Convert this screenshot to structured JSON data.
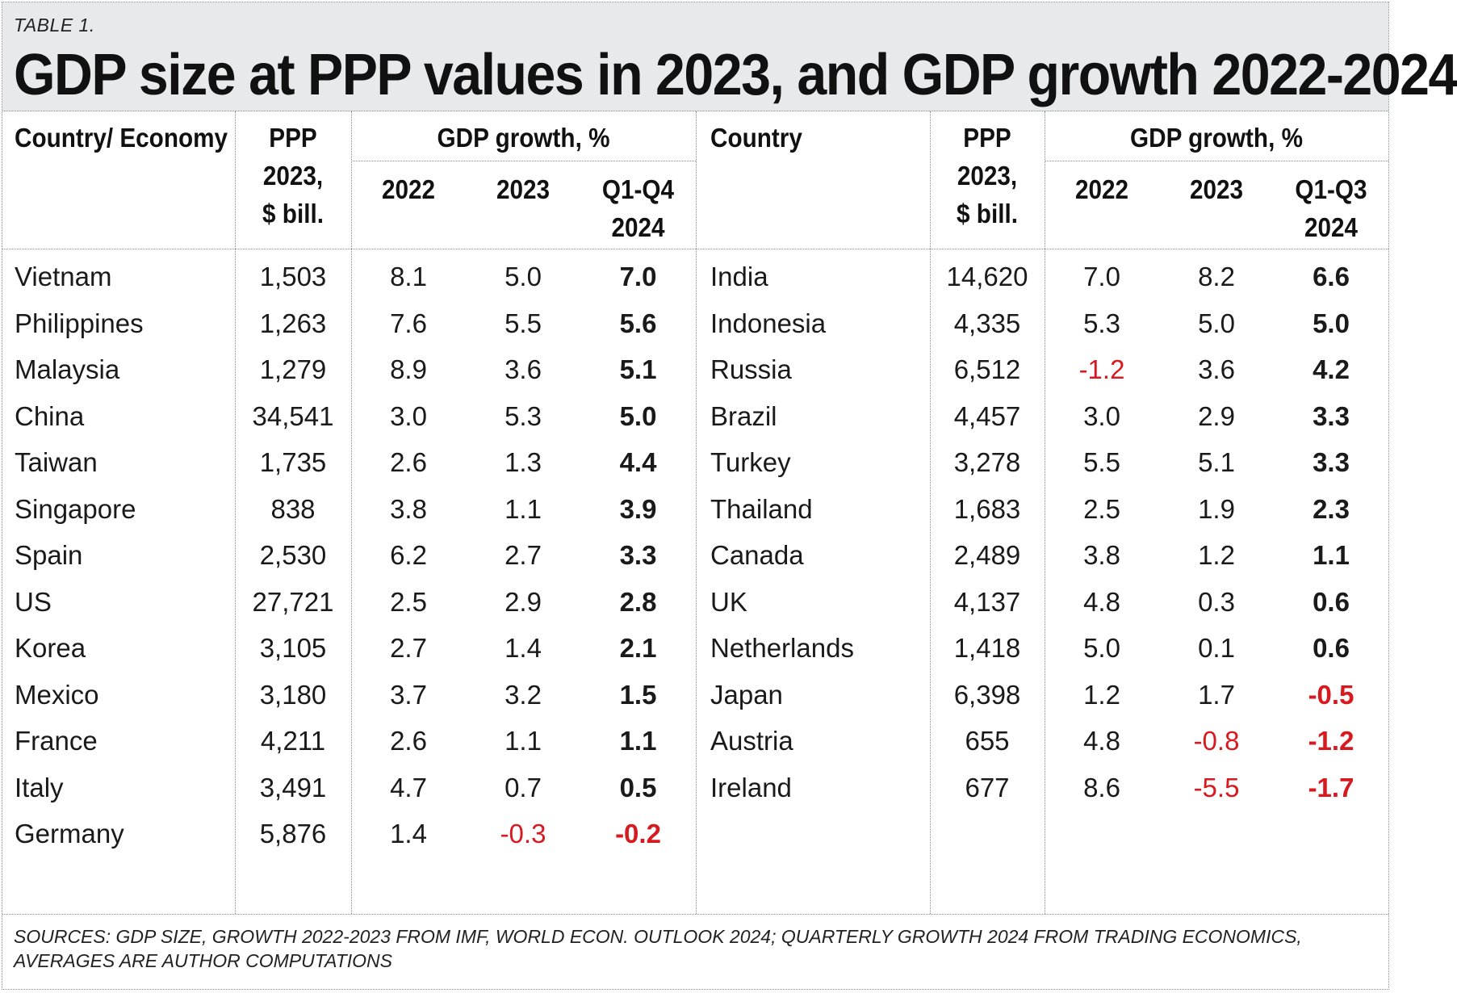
{
  "header": {
    "table_label": "TABLE 1.",
    "title": "GDP size at PPP values in 2023, and GDP growth 2022-2024"
  },
  "left_table": {
    "col_country": "Country/ Economy",
    "col_ppp_line1": "PPP",
    "col_ppp_line2": "2023,",
    "col_ppp_line3": "$ bill.",
    "col_growth": "GDP growth, %",
    "col_y1": "2022",
    "col_y2": "2023",
    "col_q_line1": "Q1-Q4",
    "col_q_line2": "2024",
    "rows": [
      {
        "country": "Vietnam",
        "ppp": "1,503",
        "g2022": "8.1",
        "g2023": "5.0",
        "g2024": "7.0"
      },
      {
        "country": "Philippines",
        "ppp": "1,263",
        "g2022": "7.6",
        "g2023": "5.5",
        "g2024": "5.6"
      },
      {
        "country": "Malaysia",
        "ppp": "1,279",
        "g2022": "8.9",
        "g2023": "3.6",
        "g2024": "5.1"
      },
      {
        "country": "China",
        "ppp": "34,541",
        "g2022": "3.0",
        "g2023": "5.3",
        "g2024": "5.0"
      },
      {
        "country": "Taiwan",
        "ppp": "1,735",
        "g2022": "2.6",
        "g2023": "1.3",
        "g2024": "4.4"
      },
      {
        "country": "Singapore",
        "ppp": "838",
        "g2022": "3.8",
        "g2023": "1.1",
        "g2024": "3.9"
      },
      {
        "country": "Spain",
        "ppp": "2,530",
        "g2022": "6.2",
        "g2023": "2.7",
        "g2024": "3.3"
      },
      {
        "country": "US",
        "ppp": "27,721",
        "g2022": "2.5",
        "g2023": "2.9",
        "g2024": "2.8"
      },
      {
        "country": "Korea",
        "ppp": "3,105",
        "g2022": "2.7",
        "g2023": "1.4",
        "g2024": "2.1"
      },
      {
        "country": "Mexico",
        "ppp": "3,180",
        "g2022": "3.7",
        "g2023": "3.2",
        "g2024": "1.5"
      },
      {
        "country": "France",
        "ppp": "4,211",
        "g2022": "2.6",
        "g2023": "1.1",
        "g2024": "1.1"
      },
      {
        "country": "Italy",
        "ppp": "3,491",
        "g2022": "4.7",
        "g2023": "0.7",
        "g2024": "0.5"
      },
      {
        "country": "Germany",
        "ppp": "5,876",
        "g2022": "1.4",
        "g2023": "-0.3",
        "g2024": "-0.2"
      }
    ]
  },
  "right_table": {
    "col_country": "Country",
    "col_ppp_line1": "PPP",
    "col_ppp_line2": "2023,",
    "col_ppp_line3": "$ bill.",
    "col_growth": "GDP growth, %",
    "col_y1": "2022",
    "col_y2": "2023",
    "col_q_line1": "Q1-Q3",
    "col_q_line2": "2024",
    "rows": [
      {
        "country": "India",
        "ppp": "14,620",
        "g2022": "7.0",
        "g2023": "8.2",
        "g2024": "6.6"
      },
      {
        "country": "Indonesia",
        "ppp": "4,335",
        "g2022": "5.3",
        "g2023": "5.0",
        "g2024": "5.0"
      },
      {
        "country": "Russia",
        "ppp": "6,512",
        "g2022": "-1.2",
        "g2023": "3.6",
        "g2024": "4.2"
      },
      {
        "country": "Brazil",
        "ppp": "4,457",
        "g2022": "3.0",
        "g2023": "2.9",
        "g2024": "3.3"
      },
      {
        "country": "Turkey",
        "ppp": "3,278",
        "g2022": "5.5",
        "g2023": "5.1",
        "g2024": "3.3"
      },
      {
        "country": "Thailand",
        "ppp": "1,683",
        "g2022": "2.5",
        "g2023": "1.9",
        "g2024": "2.3"
      },
      {
        "country": "Canada",
        "ppp": "2,489",
        "g2022": "3.8",
        "g2023": "1.2",
        "g2024": "1.1"
      },
      {
        "country": "UK",
        "ppp": "4,137",
        "g2022": "4.8",
        "g2023": "0.3",
        "g2024": "0.6"
      },
      {
        "country": "Netherlands",
        "ppp": "1,418",
        "g2022": "5.0",
        "g2023": "0.1",
        "g2024": "0.6"
      },
      {
        "country": "Japan",
        "ppp": "6,398",
        "g2022": "1.2",
        "g2023": "1.7",
        "g2024": "-0.5"
      },
      {
        "country": "Austria",
        "ppp": "655",
        "g2022": "4.8",
        "g2023": "-0.8",
        "g2024": "-1.2"
      },
      {
        "country": "Ireland",
        "ppp": "677",
        "g2022": "8.6",
        "g2023": "-5.5",
        "g2024": "-1.7"
      }
    ]
  },
  "footer": {
    "sources": "SOURCES: GDP SIZE, GROWTH 2022-2023 FROM IMF, WORLD ECON. OUTLOOK 2024; QUARTERLY GROWTH 2024 FROM TRADING ECONOMICS, AVERAGES ARE AUTHOR COMPUTATIONS"
  },
  "colors": {
    "negative": "#d71920",
    "header_bg": "#e8e9ea"
  }
}
